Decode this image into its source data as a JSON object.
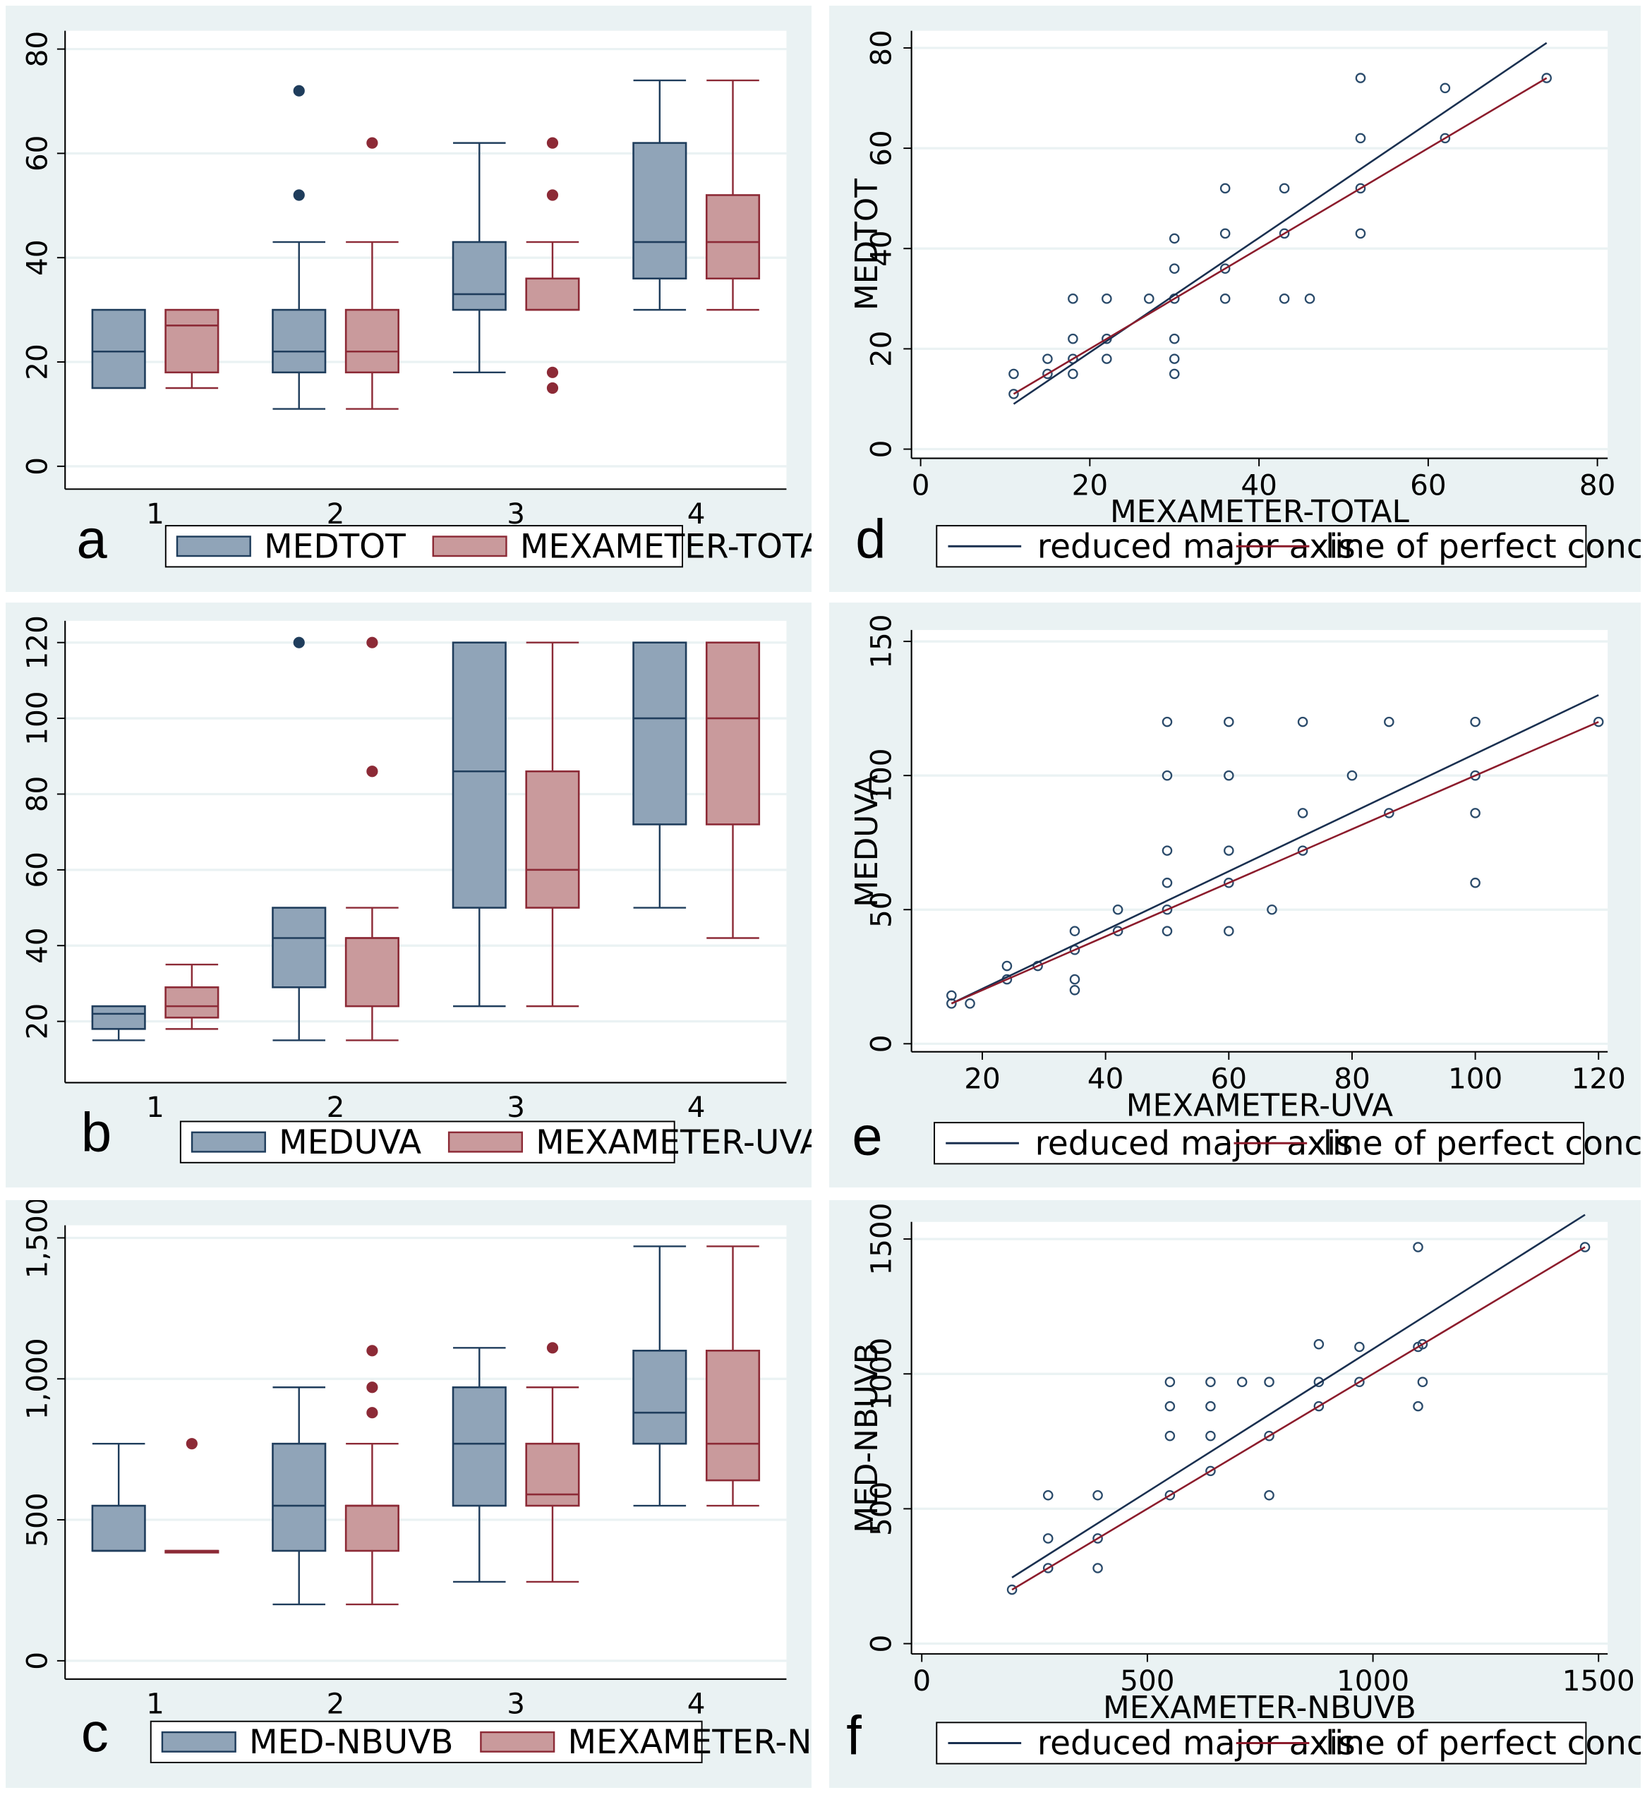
{
  "colors": {
    "panel_bg": "#eaf2f3",
    "plot_bg": "#ffffff",
    "blue_fill": "#90a4b8",
    "blue_line": "#1f3d5c",
    "red_fill": "#c99a9c",
    "red_line": "#8c2a36",
    "rma_line": "#1a3050",
    "concord_line": "#8c1c2c",
    "grid": "#eaf2f3",
    "point": "#2a4a6a"
  },
  "panels": {
    "a": {
      "letter": "a",
      "legend": [
        "MEDTOT",
        "MEXAMETER-TOTAL"
      ]
    },
    "b": {
      "letter": "b",
      "legend": [
        "MEDUVA",
        "MEXAMETER-UVA"
      ]
    },
    "c": {
      "letter": "c",
      "legend": [
        "MED-NBUVB",
        "MEXAMETER-NBUVB"
      ]
    },
    "d": {
      "letter": "d",
      "legend": [
        "reduced major axis",
        "line of perfect concordance"
      ]
    },
    "e": {
      "letter": "e",
      "legend": [
        "reduced major axis",
        "line of perfect concordance"
      ]
    },
    "f": {
      "letter": "f",
      "legend": [
        "reduced major axis",
        "line of perfect concordance"
      ]
    }
  },
  "chart_data": [
    {
      "id": "a",
      "type": "box",
      "categories": [
        "1",
        "2",
        "3",
        "4"
      ],
      "ylim": [
        0,
        80
      ],
      "yticks": [
        "0",
        "20",
        "40",
        "60",
        "80"
      ],
      "series": [
        {
          "name": "MEDTOT",
          "boxes": [
            {
              "min": 15,
              "q1": 15,
              "median": 22,
              "q3": 30,
              "max": 30,
              "outliers": []
            },
            {
              "min": 11,
              "q1": 18,
              "median": 22,
              "q3": 30,
              "max": 43,
              "outliers": [
                52,
                72
              ]
            },
            {
              "min": 18,
              "q1": 30,
              "median": 33,
              "q3": 43,
              "max": 62,
              "outliers": []
            },
            {
              "min": 30,
              "q1": 36,
              "median": 43,
              "q3": 62,
              "max": 74,
              "outliers": []
            }
          ]
        },
        {
          "name": "MEXAMETER-TOTAL",
          "boxes": [
            {
              "min": 15,
              "q1": 18,
              "median": 27,
              "q3": 30,
              "max": 30,
              "outliers": []
            },
            {
              "min": 11,
              "q1": 18,
              "median": 22,
              "q3": 30,
              "max": 43,
              "outliers": [
                62
              ]
            },
            {
              "min": 30,
              "q1": 30,
              "median": 30,
              "q3": 36,
              "max": 43,
              "outliers": [
                15,
                18,
                52,
                62
              ]
            },
            {
              "min": 30,
              "q1": 36,
              "median": 43,
              "q3": 52,
              "max": 74,
              "outliers": []
            }
          ]
        }
      ]
    },
    {
      "id": "b",
      "type": "box",
      "categories": [
        "1",
        "2",
        "3",
        "4"
      ],
      "ylim": [
        15,
        120
      ],
      "yticks": [
        "20",
        "40",
        "60",
        "80",
        "100",
        "120"
      ],
      "series": [
        {
          "name": "MEDUVA",
          "boxes": [
            {
              "min": 15,
              "q1": 18,
              "median": 22,
              "q3": 24,
              "max": 24,
              "outliers": []
            },
            {
              "min": 15,
              "q1": 29,
              "median": 42,
              "q3": 50,
              "max": 50,
              "outliers": [
                120
              ]
            },
            {
              "min": 24,
              "q1": 50,
              "median": 86,
              "q3": 120,
              "max": 120,
              "outliers": []
            },
            {
              "min": 50,
              "q1": 72,
              "median": 100,
              "q3": 120,
              "max": 120,
              "outliers": []
            }
          ]
        },
        {
          "name": "MEXAMETER-UVA",
          "boxes": [
            {
              "min": 18,
              "q1": 21,
              "median": 24,
              "q3": 29,
              "max": 35,
              "outliers": []
            },
            {
              "min": 15,
              "q1": 24,
              "median": 42,
              "q3": 42,
              "max": 50,
              "outliers": [
                86,
                120
              ]
            },
            {
              "min": 24,
              "q1": 50,
              "median": 60,
              "q3": 86,
              "max": 120,
              "outliers": []
            },
            {
              "min": 42,
              "q1": 72,
              "median": 100,
              "q3": 120,
              "max": 120,
              "outliers": []
            }
          ]
        }
      ]
    },
    {
      "id": "c",
      "type": "box",
      "categories": [
        "1",
        "2",
        "3",
        "4"
      ],
      "ylim": [
        0,
        1500
      ],
      "yticks": [
        "0",
        "500",
        "1,000",
        "1,500"
      ],
      "series": [
        {
          "name": "MED-NBUVB",
          "boxes": [
            {
              "min": 390,
              "q1": 390,
              "median": 390,
              "q3": 550,
              "max": 770,
              "outliers": []
            },
            {
              "min": 200,
              "q1": 390,
              "median": 550,
              "q3": 770,
              "max": 970,
              "outliers": []
            },
            {
              "min": 280,
              "q1": 550,
              "median": 770,
              "q3": 970,
              "max": 1110,
              "outliers": []
            },
            {
              "min": 550,
              "q1": 770,
              "median": 880,
              "q3": 1100,
              "max": 1470,
              "outliers": []
            }
          ]
        },
        {
          "name": "MEXAMETER-NBUVB",
          "boxes": [
            {
              "min": 390,
              "q1": 390,
              "median": 390,
              "q3": 390,
              "max": 390,
              "outliers": [
                770
              ]
            },
            {
              "min": 200,
              "q1": 390,
              "median": 550,
              "q3": 550,
              "max": 770,
              "outliers": [
                880,
                970,
                1100
              ]
            },
            {
              "min": 280,
              "q1": 550,
              "median": 590,
              "q3": 770,
              "max": 970,
              "outliers": [
                1110
              ]
            },
            {
              "min": 550,
              "q1": 640,
              "median": 770,
              "q3": 1100,
              "max": 1470,
              "outliers": []
            }
          ]
        }
      ]
    },
    {
      "id": "d",
      "type": "scatter",
      "xlabel": "MEXAMETER-TOTAL",
      "ylabel": "MEDTOT",
      "xlim": [
        0,
        80
      ],
      "ylim": [
        0,
        80
      ],
      "xticks": [
        "0",
        "20",
        "40",
        "60",
        "80"
      ],
      "yticks": [
        "0",
        "20",
        "40",
        "60",
        "80"
      ],
      "rma": [
        [
          11,
          9
        ],
        [
          74,
          81
        ]
      ],
      "concordance": [
        [
          11,
          11
        ],
        [
          74,
          74
        ]
      ],
      "points": [
        [
          11,
          15
        ],
        [
          11,
          11
        ],
        [
          15,
          18
        ],
        [
          15,
          15
        ],
        [
          18,
          30
        ],
        [
          18,
          22
        ],
        [
          18,
          18
        ],
        [
          18,
          15
        ],
        [
          22,
          30
        ],
        [
          22,
          22
        ],
        [
          22,
          18
        ],
        [
          27,
          30
        ],
        [
          30,
          42
        ],
        [
          30,
          36
        ],
        [
          30,
          30
        ],
        [
          30,
          22
        ],
        [
          30,
          18
        ],
        [
          30,
          15
        ],
        [
          36,
          52
        ],
        [
          36,
          43
        ],
        [
          36,
          36
        ],
        [
          36,
          30
        ],
        [
          43,
          52
        ],
        [
          43,
          43
        ],
        [
          43,
          30
        ],
        [
          46,
          30
        ],
        [
          52,
          74
        ],
        [
          52,
          62
        ],
        [
          52,
          52
        ],
        [
          52,
          43
        ],
        [
          62,
          72
        ],
        [
          62,
          62
        ],
        [
          74,
          74
        ]
      ]
    },
    {
      "id": "e",
      "type": "scatter",
      "xlabel": "MEXAMETER-UVA",
      "ylabel": "MEDUVA",
      "xlim": [
        15,
        120
      ],
      "ylim": [
        0,
        150
      ],
      "xticks": [
        "20",
        "40",
        "60",
        "80",
        "100",
        "120"
      ],
      "yticks": [
        "0",
        "50",
        "100",
        "150"
      ],
      "rma": [
        [
          15,
          15
        ],
        [
          120,
          130
        ]
      ],
      "concordance": [
        [
          15,
          15
        ],
        [
          120,
          120
        ]
      ],
      "points": [
        [
          15,
          18
        ],
        [
          15,
          15
        ],
        [
          18,
          15
        ],
        [
          24,
          29
        ],
        [
          24,
          24
        ],
        [
          29,
          29
        ],
        [
          35,
          42
        ],
        [
          35,
          35
        ],
        [
          35,
          24
        ],
        [
          35,
          20
        ],
        [
          42,
          50
        ],
        [
          42,
          42
        ],
        [
          50,
          120
        ],
        [
          50,
          100
        ],
        [
          50,
          72
        ],
        [
          50,
          60
        ],
        [
          50,
          50
        ],
        [
          50,
          42
        ],
        [
          60,
          120
        ],
        [
          60,
          100
        ],
        [
          60,
          72
        ],
        [
          60,
          60
        ],
        [
          60,
          42
        ],
        [
          67,
          50
        ],
        [
          72,
          120
        ],
        [
          72,
          86
        ],
        [
          72,
          72
        ],
        [
          80,
          100
        ],
        [
          86,
          120
        ],
        [
          86,
          86
        ],
        [
          100,
          120
        ],
        [
          100,
          100
        ],
        [
          100,
          86
        ],
        [
          100,
          60
        ],
        [
          120,
          120
        ]
      ]
    },
    {
      "id": "f",
      "type": "scatter",
      "xlabel": "MEXAMETER-NBUVB",
      "ylabel": "MED-NBUVB",
      "xlim": [
        0,
        1500
      ],
      "ylim": [
        0,
        1500
      ],
      "xticks": [
        "0",
        "500",
        "1000",
        "1500"
      ],
      "yticks": [
        "0",
        "500",
        "1000",
        "1500"
      ],
      "rma": [
        [
          200,
          245
        ],
        [
          1470,
          1590
        ]
      ],
      "concordance": [
        [
          200,
          200
        ],
        [
          1470,
          1470
        ]
      ],
      "points": [
        [
          200,
          200
        ],
        [
          280,
          550
        ],
        [
          280,
          390
        ],
        [
          280,
          280
        ],
        [
          390,
          550
        ],
        [
          390,
          390
        ],
        [
          390,
          280
        ],
        [
          550,
          970
        ],
        [
          550,
          880
        ],
        [
          550,
          770
        ],
        [
          550,
          550
        ],
        [
          640,
          970
        ],
        [
          640,
          880
        ],
        [
          640,
          770
        ],
        [
          640,
          640
        ],
        [
          710,
          970
        ],
        [
          770,
          970
        ],
        [
          770,
          770
        ],
        [
          770,
          550
        ],
        [
          880,
          1110
        ],
        [
          880,
          970
        ],
        [
          880,
          880
        ],
        [
          970,
          1100
        ],
        [
          970,
          970
        ],
        [
          1100,
          1470
        ],
        [
          1100,
          1100
        ],
        [
          1100,
          880
        ],
        [
          1110,
          1110
        ],
        [
          1110,
          970
        ],
        [
          1470,
          1470
        ]
      ]
    }
  ]
}
